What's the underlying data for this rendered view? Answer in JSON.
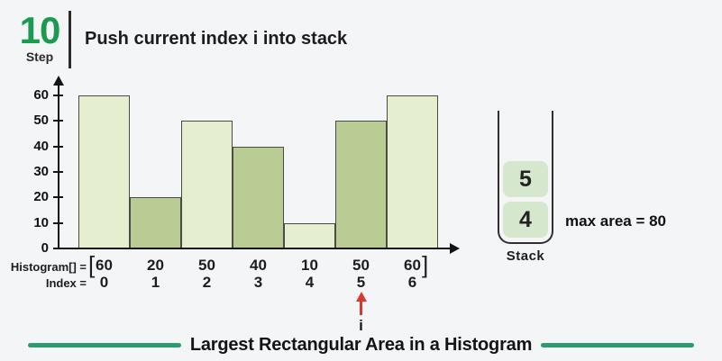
{
  "colors": {
    "background": "#f4f5f7",
    "accent_green": "#1b9a50",
    "line_green": "#2b9c6b",
    "pointer_red": "#d8392f",
    "bar_border": "#4b4b45",
    "stack_item_bg": "#d5e8cd"
  },
  "header": {
    "step_number": "10",
    "step_label": "Step",
    "title": "Push current index i into stack"
  },
  "chart_data": {
    "type": "bar",
    "categories": [
      0,
      1,
      2,
      3,
      4,
      5,
      6
    ],
    "values": [
      60,
      20,
      50,
      40,
      10,
      50,
      60
    ],
    "title": "",
    "xlabel": "",
    "ylabel": "",
    "ylim": [
      0,
      60
    ],
    "yticks": [
      0,
      10,
      20,
      30,
      40,
      50,
      60
    ],
    "grid": false,
    "legend": false,
    "bar_colors": [
      "#e5efd0",
      "#b9cc93",
      "#e5efd0",
      "#b9cc93",
      "#e5efd0",
      "#b9cc93",
      "#e5efd0"
    ]
  },
  "histogram_row": {
    "label": "Histogram[] =",
    "open_bracket": "[",
    "values": [
      "60",
      "20",
      "50",
      "40",
      "10",
      "50",
      "60"
    ],
    "close_bracket": "]"
  },
  "index_row": {
    "label": "Index =",
    "values": [
      "0",
      "1",
      "2",
      "3",
      "4",
      "5",
      "6"
    ]
  },
  "pointer": {
    "bar_index": 5,
    "label": "i"
  },
  "stack": {
    "items_top_to_bottom": [
      "5",
      "4"
    ],
    "label": "Stack"
  },
  "annotation": {
    "max_area": "max area = 80"
  },
  "footer": {
    "title": "Largest Rectangular Area in a Histogram"
  }
}
